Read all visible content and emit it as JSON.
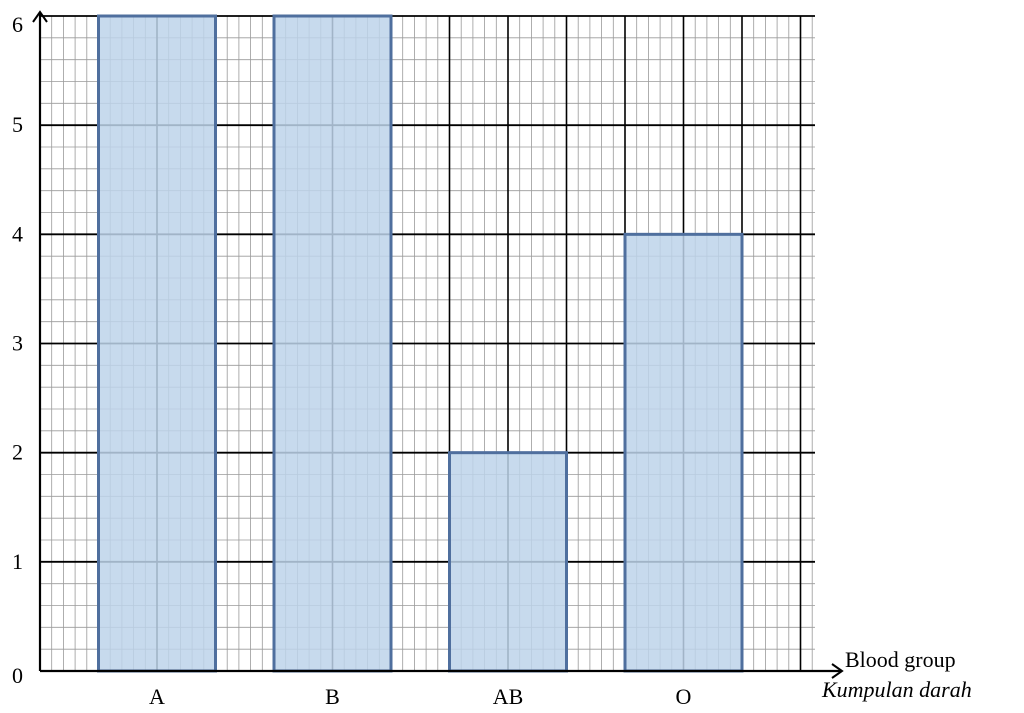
{
  "chart_data": {
    "type": "bar",
    "categories": [
      "A",
      "B",
      "AB",
      "O"
    ],
    "values": [
      6,
      6,
      2,
      4
    ],
    "ylim": [
      0,
      6
    ],
    "yticks": [
      "0",
      "1",
      "2",
      "3",
      "4",
      "5",
      "6"
    ],
    "xlabel": "Blood group",
    "xlabel_secondary": "Kumpulan darah",
    "ylabel": "",
    "grid": true,
    "bar_fill": "#bdd3ea",
    "bar_stroke": "#4f6f9e",
    "grid_minor_color": "#9a9a9a",
    "grid_major_color": "#000000"
  }
}
